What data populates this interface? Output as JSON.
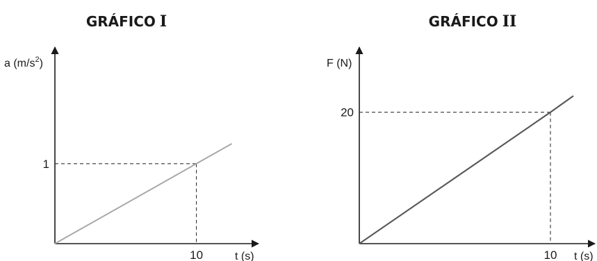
{
  "chart_data": [
    {
      "type": "line",
      "title": "GRÁFICO",
      "title_numeral": "I",
      "xlabel": "t (s)",
      "ylabel_base": "a (m/s",
      "ylabel_sup": "2",
      "ylabel_end": ")",
      "x_ticks": [
        10
      ],
      "y_ticks": [
        1
      ],
      "x_tick_labels": [
        "10"
      ],
      "y_tick_labels": [
        "1"
      ],
      "xlim": [
        0,
        14
      ],
      "ylim": [
        0,
        2.3
      ],
      "series": [
        {
          "x": [
            0,
            10,
            12.5
          ],
          "y": [
            0,
            1,
            1.25
          ]
        }
      ],
      "guides": [
        {
          "x": 10,
          "y": 1
        }
      ],
      "line_color": "#a8a8a8"
    },
    {
      "type": "line",
      "title": "GRÁFICO",
      "title_numeral": "II",
      "xlabel": "t (s)",
      "ylabel_base": "F (N)",
      "x_ticks": [
        10
      ],
      "y_ticks": [
        20
      ],
      "x_tick_labels": [
        "10"
      ],
      "y_tick_labels": [
        "20"
      ],
      "xlim": [
        0,
        12
      ],
      "ylim": [
        0,
        28
      ],
      "series": [
        {
          "x": [
            0,
            10,
            11.2
          ],
          "y": [
            0,
            20,
            22.5
          ]
        }
      ],
      "guides": [
        {
          "x": 10,
          "y": 20
        }
      ],
      "line_color": "#5a5a5a"
    }
  ]
}
